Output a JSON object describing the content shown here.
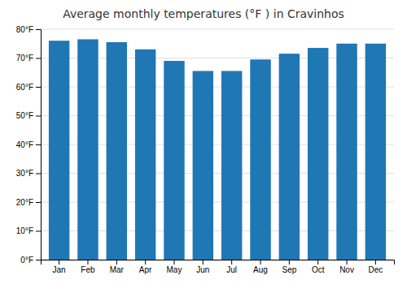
{
  "chart_data": {
    "type": "bar",
    "title": "Average monthly temperatures (°F ) in Cravinhos",
    "categories": [
      "Jan",
      "Feb",
      "Mar",
      "Apr",
      "May",
      "Jun",
      "Jul",
      "Aug",
      "Sep",
      "Oct",
      "Nov",
      "Dec"
    ],
    "values": [
      76,
      76.5,
      75.5,
      73,
      69,
      65.5,
      65.5,
      69.5,
      71.5,
      73.5,
      75,
      75
    ],
    "ylim": [
      0,
      80
    ],
    "yticks": [
      {
        "value": 0,
        "label": "0°F"
      },
      {
        "value": 10,
        "label": "10°F"
      },
      {
        "value": 20,
        "label": "20°F"
      },
      {
        "value": 30,
        "label": "30°F"
      },
      {
        "value": 40,
        "label": "40°F"
      },
      {
        "value": 50,
        "label": "50°F"
      },
      {
        "value": 60,
        "label": "60°F"
      },
      {
        "value": 70,
        "label": "70°F"
      },
      {
        "value": 80,
        "label": "80°F"
      }
    ],
    "grid": true
  }
}
